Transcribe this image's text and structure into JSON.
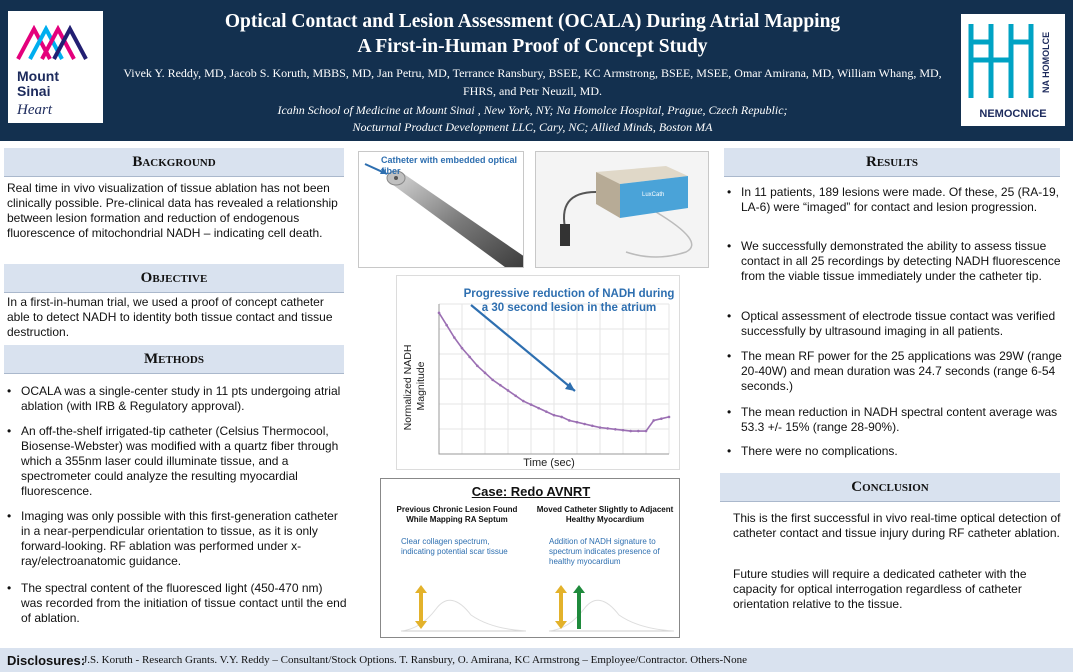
{
  "header": {
    "title_line1": "Optical Contact and Lesion Assessment (OCALA) During Atrial Mapping",
    "title_line2": "A First-in-Human Proof of Concept Study",
    "authors": "Vivek Y. Reddy, MD, Jacob S. Koruth, MBBS, MD, Jan Petru, MD, Terrance Ransbury, BSEE, KC Armstrong, BSEE, MSEE, Omar Amirana, MD, William Whang, MD, FHRS, and Petr Neuzil, MD.",
    "affiliation_line1": "Icahn School of Medicine at Mount Sinai , New York, NY; Na Homolce Hospital, Prague, Czech Republic;",
    "affiliation_line2": "Nocturnal Product Development LLC, Cary, NC; Allied Minds, Boston MA",
    "left_logo": {
      "line1": "Mount",
      "line2": "Sinai",
      "line3": "Heart",
      "colors": [
        "#e4007c",
        "#00aeef",
        "#221f72"
      ]
    },
    "right_logo": {
      "side_text": "NA HOMOLCE",
      "bottom_text": "NEMOCNICE",
      "color": "#00a3c4"
    }
  },
  "background": {
    "heading": "Background",
    "text": "Real time in vivo visualization of tissue ablation has not been clinically possible. Pre-clinical data has revealed a relationship between lesion formation and reduction of endogenous fluorescence of mitochondrial NADH – indicating cell death."
  },
  "objective": {
    "heading": "Objective",
    "text": "In a first-in-human trial, we used a proof of concept catheter able to detect NADH to identity both tissue contact and tissue destruction."
  },
  "methods": {
    "heading": "Methods",
    "bullets": [
      "OCALA was a single-center study in 11 pts undergoing atrial ablation (with IRB & Regulatory approval).",
      "An off-the-shelf irrigated-tip catheter (Celsius Thermocool, Biosense-Webster) was modified with a quartz fiber through which a 355nm laser could illuminate tissue, and a spectrometer could analyze the resulting myocardial fluorescence.",
      "Imaging was only possible with this first-generation catheter in a near-perpendicular orientation to tissue, as it is only forward-looking. RF ablation was performed under x-ray/electroanatomic guidance.",
      "The spectral content of the fluoresced light (450-470 nm) was recorded from the initiation of tissue contact until the end of ablation."
    ]
  },
  "figures": {
    "catheter_label": "Catheter with embedded optical fiber",
    "device_label": "LuxCath",
    "chart_title_line1": "Progressive reduction of NADH during",
    "chart_title_line2": "a 30 second lesion in the atrium",
    "case_title": "Case: Redo AVNRT",
    "case_left_title": "Previous Chronic Lesion Found While Mapping RA Septum",
    "case_left_note": "Clear collagen spectrum, indicating potential scar tissue",
    "case_right_title": "Moved Catheter Slightly to Adjacent Healthy Myocardium",
    "case_right_note": "Addition of NADH signature to spectrum indicates presence of healthy myocardium"
  },
  "chart_data": {
    "type": "line",
    "title": "Progressive reduction of NADH during a 30 second lesion in the atrium",
    "xlabel": "Time (sec)",
    "ylabel": "Normalized NADH Magnitude",
    "x": [
      0,
      1,
      2,
      3,
      4,
      5,
      6,
      7,
      8,
      9,
      10,
      11,
      12,
      13,
      14,
      15,
      16,
      17,
      18,
      19,
      20,
      21,
      22,
      23,
      24,
      25,
      26,
      27,
      28,
      29,
      30
    ],
    "series": [
      {
        "values": [
          1.0,
          0.93,
          0.86,
          0.8,
          0.75,
          0.7,
          0.66,
          0.62,
          0.59,
          0.56,
          0.53,
          0.5,
          0.48,
          0.46,
          0.44,
          0.42,
          0.41,
          0.39,
          0.38,
          0.37,
          0.36,
          0.35,
          0.345,
          0.34,
          0.335,
          0.33,
          0.33,
          0.33,
          0.39,
          0.4,
          0.41
        ],
        "color": "#9b6fb3"
      }
    ],
    "grid": true,
    "line_color": "#9b6fb3",
    "arrow_color": "#2e6fb0"
  },
  "results": {
    "heading": "Results",
    "bullets": [
      "In 11 patients, 189 lesions were made. Of these, 25 (RA-19, LA-6) were “imaged” for contact and lesion progression.",
      "We successfully demonstrated the ability to assess tissue contact in all 25 recordings by detecting NADH fluorescence from the viable tissue immediately under the catheter tip.",
      "Optical assessment of electrode tissue contact was verified successfully by ultrasound imaging in all patients.",
      "The mean RF power for the 25 applications was 29W (range 20-40W) and mean duration was 24.7 seconds (range 6-54 seconds.)",
      "The mean reduction in NADH spectral content average was 53.3 +/- 15% (range 28-90%).",
      "There were no complications."
    ]
  },
  "conclusion": {
    "heading": "Conclusion",
    "para1": "This is the first successful in vivo real-time optical detection of catheter contact and tissue injury during RF catheter ablation.",
    "para2": "Future studies will require a dedicated catheter with the capacity for optical interrogation regardless of catheter orientation relative to the tissue."
  },
  "disclosures": {
    "label": "Disclosures:",
    "text": "J.S. Koruth - Research Grants.  V.Y. Reddy – Consultant/Stock Options.   T. Ransbury, O. Amirana, KC Armstrong – Employee/Contractor. Others-None"
  }
}
